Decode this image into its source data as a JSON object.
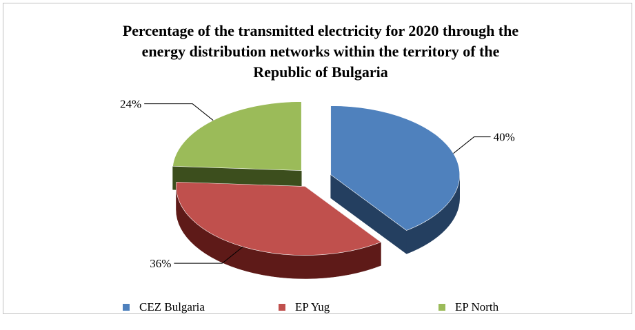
{
  "chart_data": {
    "type": "pie",
    "title_lines": [
      "Percentage of the transmitted  electricity for 2020 through  the",
      "energy distribution  networks within  the territory  of the",
      "Republic of Bulgaria"
    ],
    "slices": [
      {
        "name": "CEZ Bulgaria",
        "value": 40,
        "label": "40%",
        "color": "#4f81bd",
        "dark": "#243f60"
      },
      {
        "name": "EP Yug",
        "value": 36,
        "label": "36%",
        "color": "#c0504d",
        "dark": "#5e1a18"
      },
      {
        "name": "EP North",
        "value": 24,
        "label": "24%",
        "color": "#9bbb59",
        "dark": "#3c4e1d"
      }
    ],
    "legend_position": "bottom",
    "style": "3d-exploded-pie"
  }
}
